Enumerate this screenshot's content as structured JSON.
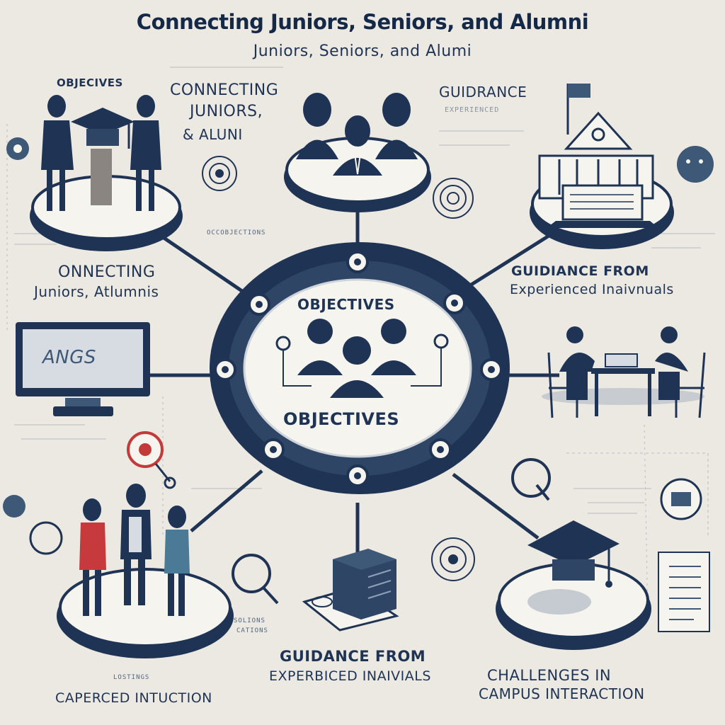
{
  "title": "Connecting Juniors, Seniors, and Alumni",
  "subtitle": "Juniors, Seniors, and Alumi",
  "center": {
    "top_label": "OBJECTIVES",
    "bottom_label": "OBJECTIVES"
  },
  "labels": {
    "top_left_objectives": "OBJECIVES",
    "connecting_line1": "CONNECTING",
    "connecting_line2": "JUNIORS,",
    "connecting_line3": "& ALUNI",
    "guidance_top": "GUIDRANCE",
    "guidance_sub": "EXPERIENCED",
    "occ_objections": "OCCOBJECTIONS",
    "onnecting_line1": "ONNECTING",
    "onnecting_line2": "Juniors, Atlumnis",
    "guidance_right_line1": "GUIDIANCE FROM",
    "guidance_right_line2": "Experienced Inaivnuals",
    "small_caption_1": "SOLIONS",
    "small_caption_2": "CATIONS",
    "guidance_bottom_line1": "GUIDANCE FROM",
    "guidance_bottom_line2": "EXPERBICED INAIVIALS",
    "challenges_line1": "CHALLENGES IN",
    "challenges_line2": "CAMPUS INTERACTION",
    "bottom_left_small": "LOSTINGS",
    "bottom_left_caption": "CAPERCED INTUCTION",
    "monitor_screen_text": "ANGS"
  },
  "colors": {
    "navy": "#1f3454",
    "mid_blue": "#3e5877",
    "pale": "#f3f1ec",
    "background": "#ece9e2",
    "red_accent": "#c23a3a",
    "red_shirt": "#c63a3d",
    "teal_shirt": "#4a7a96"
  },
  "icons": [
    "graduation-cap-icon",
    "people-group-icon",
    "building-icon",
    "laptop-icon",
    "monitor-icon",
    "target-icon",
    "magnifier-icon",
    "chat-bubble-icon",
    "server-icon",
    "checklist-icon",
    "flag-icon",
    "meeting-table-icon"
  ]
}
